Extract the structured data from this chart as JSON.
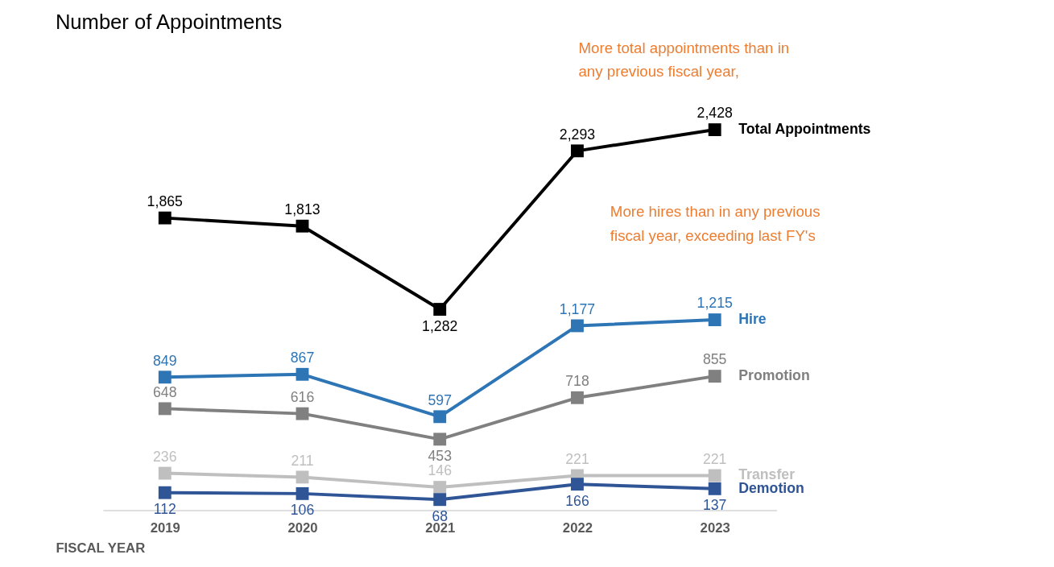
{
  "chart_data": {
    "type": "line",
    "title": "Number of Appointments",
    "xlabel": "FISCAL YEAR",
    "categories": [
      "2019",
      "2020",
      "2021",
      "2022",
      "2023"
    ],
    "series": [
      {
        "name": "Total Appointments",
        "color": "#000000",
        "values": [
          1865,
          1813,
          1282,
          2293,
          2428
        ],
        "value_labels": [
          "1,865",
          "1,813",
          "1,282",
          "2,293",
          "2,428"
        ]
      },
      {
        "name": "Hire",
        "color": "#2e75b6",
        "values": [
          849,
          867,
          597,
          1177,
          1215
        ],
        "value_labels": [
          "849",
          "867",
          "597",
          "1,177",
          "1,215"
        ]
      },
      {
        "name": "Promotion",
        "color": "#808080",
        "values": [
          648,
          616,
          453,
          718,
          855
        ],
        "value_labels": [
          "648",
          "616",
          "453",
          "718",
          "855"
        ]
      },
      {
        "name": "Transfer",
        "color": "#bfbfbf",
        "values": [
          236,
          211,
          146,
          221,
          221
        ],
        "value_labels": [
          "236",
          "211",
          "146",
          "221",
          "221"
        ]
      },
      {
        "name": "Demotion",
        "color": "#2f5597",
        "values": [
          112,
          106,
          68,
          166,
          137
        ],
        "value_labels": [
          "112",
          "106",
          "68",
          "166",
          "137"
        ]
      }
    ],
    "annotations": [
      "More total appointments than in any previous fiscal year,",
      "More hires than in any previous fiscal year, exceeding last FY's"
    ],
    "marker": "square",
    "line_style": "solid",
    "legend": false,
    "grid": false
  }
}
